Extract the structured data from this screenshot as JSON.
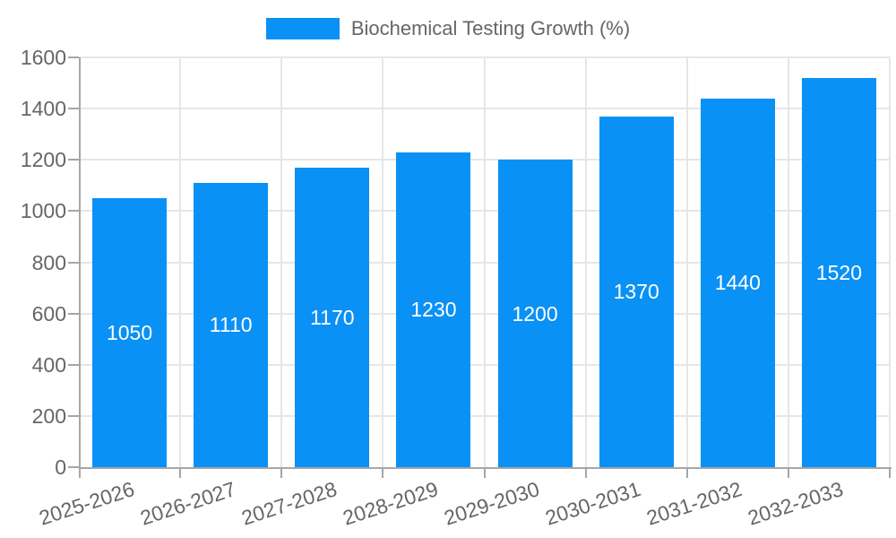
{
  "chart_data": {
    "type": "bar",
    "legend_label": "Biochemical Testing Growth (%)",
    "legend_position": "top",
    "categories": [
      "2025-2026",
      "2026-2027",
      "2027-2028",
      "2028-2029",
      "2029-2030",
      "2030-2031",
      "2031-2032",
      "2032-2033"
    ],
    "values": [
      1050,
      1110,
      1170,
      1230,
      1200,
      1370,
      1440,
      1520
    ],
    "title": "",
    "xlabel": "",
    "ylabel": "",
    "ylim": [
      0,
      1600
    ],
    "yticks": [
      0,
      200,
      400,
      600,
      800,
      1000,
      1200,
      1400,
      1600
    ],
    "grid": true,
    "value_label_position": "inside-center",
    "x_label_rotation_deg": -18,
    "colors": {
      "bar": "#0a91f5",
      "value_label": "#ffffff",
      "tick_text": "#666666",
      "grid": "#e6e6e6",
      "axis": "#a6a6a6",
      "background": "#ffffff"
    }
  }
}
